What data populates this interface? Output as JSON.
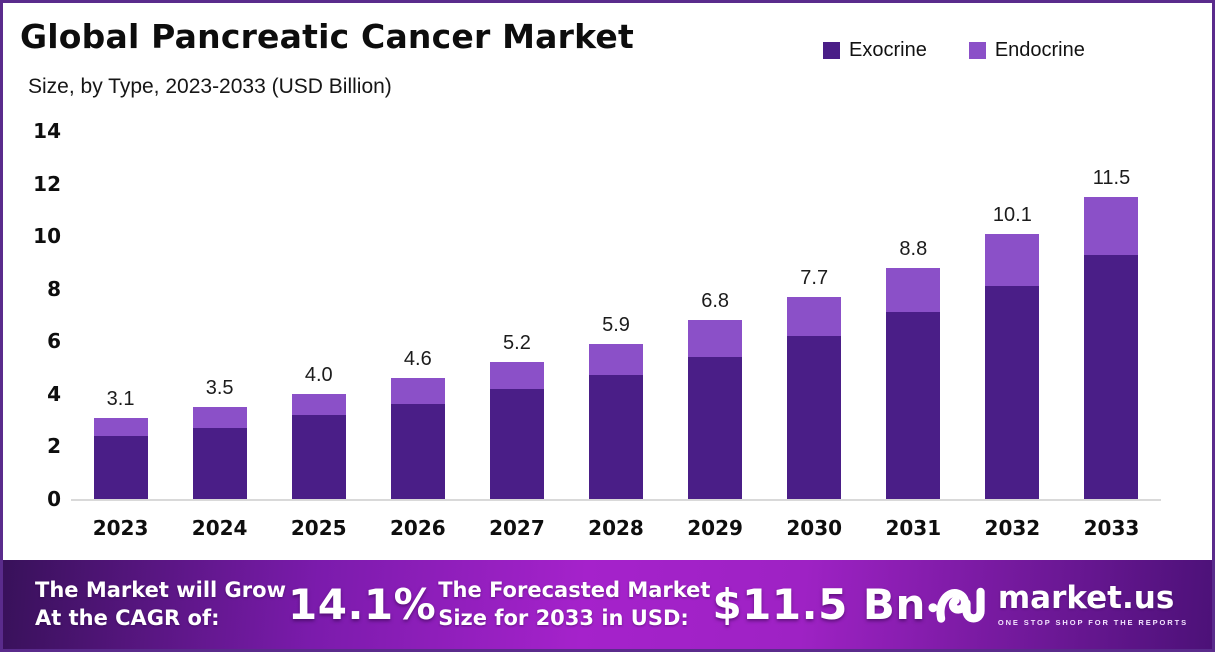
{
  "header": {
    "title": "Global Pancreatic Cancer Market",
    "subtitle": "Size, by Type, 2023-2033 (USD Billion)"
  },
  "legend": {
    "items": [
      {
        "label": "Exocrine",
        "color": "#4a1e87"
      },
      {
        "label": "Endocrine",
        "color": "#8b50c8"
      }
    ]
  },
  "chart_data": {
    "type": "bar",
    "stacked": true,
    "title": "Global Pancreatic Cancer Market",
    "subtitle": "Size, by Type, 2023-2033 (USD Billion)",
    "categories": [
      "2023",
      "2024",
      "2025",
      "2026",
      "2027",
      "2028",
      "2029",
      "2030",
      "2031",
      "2032",
      "2033"
    ],
    "series": [
      {
        "name": "Exocrine",
        "color": "#4a1e87",
        "values": [
          2.4,
          2.7,
          3.2,
          3.6,
          4.2,
          4.7,
          5.4,
          6.2,
          7.1,
          8.1,
          9.3
        ]
      },
      {
        "name": "Endocrine",
        "color": "#8b50c8",
        "values": [
          0.7,
          0.8,
          0.8,
          1.0,
          1.0,
          1.2,
          1.4,
          1.5,
          1.7,
          2.0,
          2.2
        ]
      }
    ],
    "totals": [
      3.1,
      3.5,
      4.0,
      4.6,
      5.2,
      5.9,
      6.8,
      7.7,
      8.8,
      10.1,
      11.5
    ],
    "total_labels": [
      "3.1",
      "3.5",
      "4.0",
      "4.6",
      "5.2",
      "5.9",
      "6.8",
      "7.7",
      "8.8",
      "10.1",
      "11.5"
    ],
    "xlabel": "",
    "ylabel": "",
    "ylim": [
      0,
      14
    ],
    "yticks": [
      0,
      2,
      4,
      6,
      8,
      10,
      12,
      14
    ],
    "grid": false,
    "legend_position": "top-right"
  },
  "banner": {
    "cagr_line1": "The Market will Grow",
    "cagr_line2": "At the CAGR of:",
    "cagr_value": "14.1%",
    "forecast_line1": "The Forecasted Market",
    "forecast_line2": "Size for 2033 in USD:",
    "forecast_value": "$11.5 Bn",
    "logo_text": "market.us",
    "logo_tagline": "ONE STOP SHOP FOR THE REPORTS",
    "gradient": [
      "#38115a",
      "#7b1bac",
      "#a522cb",
      "#9e22c4",
      "#4c1178"
    ]
  },
  "colors": {
    "page_border": "#5a2b8c",
    "axis_line": "#d9d9d9",
    "exocrine": "#4a1e87",
    "endocrine": "#8b50c8"
  }
}
